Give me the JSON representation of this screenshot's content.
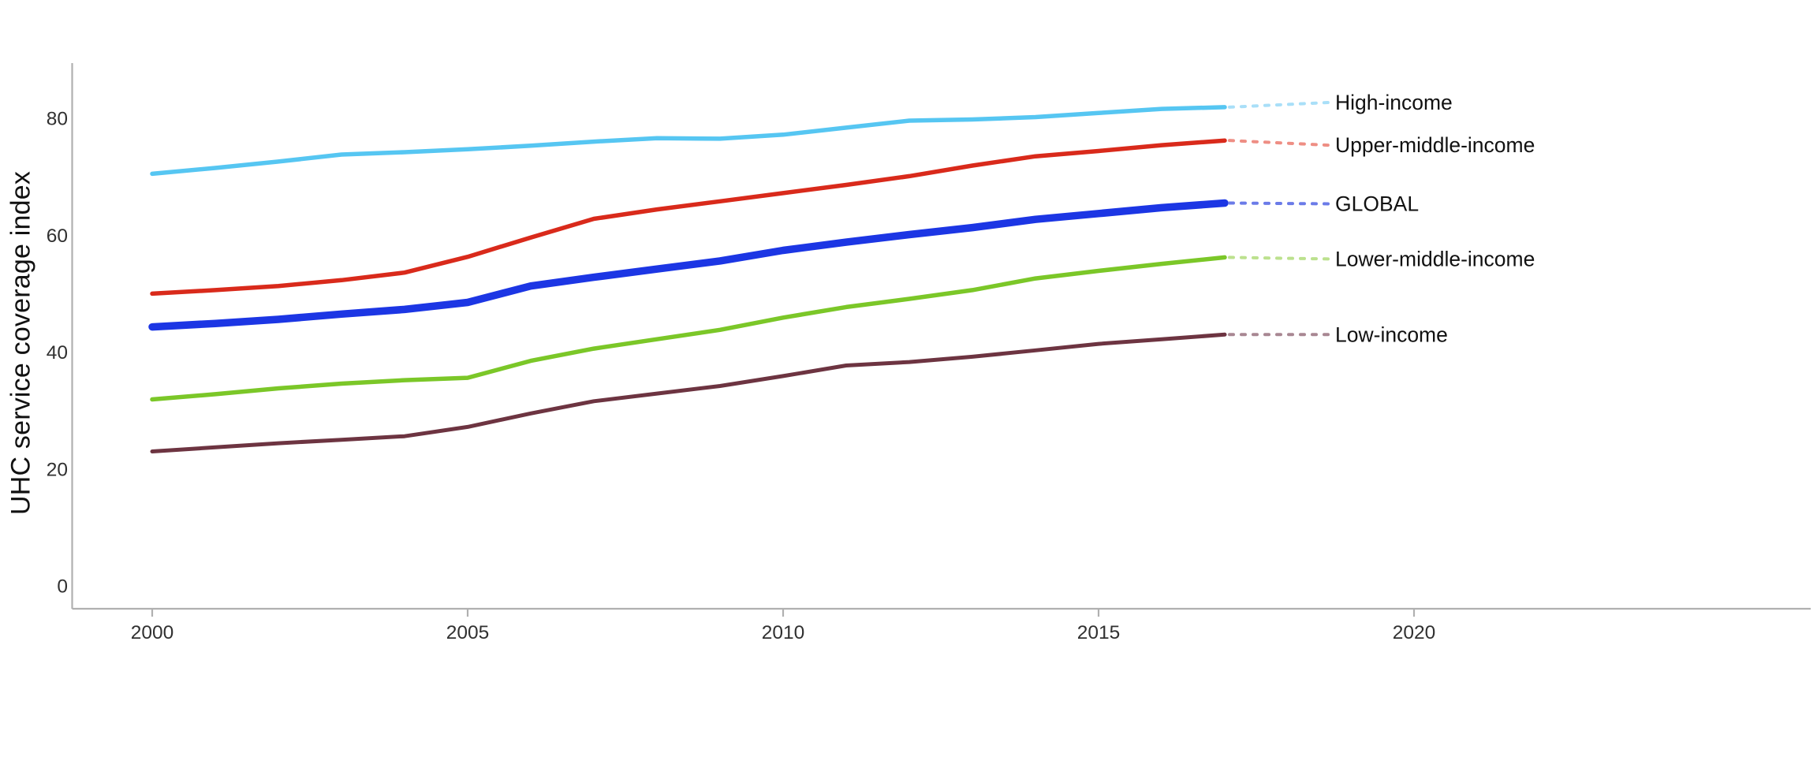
{
  "chart_data": {
    "type": "line",
    "title": "",
    "xlabel": "",
    "ylabel": "UHC service coverage index",
    "x": [
      2000,
      2001,
      2002,
      2003,
      2004,
      2005,
      2006,
      2007,
      2008,
      2009,
      2010,
      2011,
      2012,
      2013,
      2014,
      2015,
      2016,
      2017
    ],
    "x_ticks": [
      "2000",
      "2005",
      "2010",
      "2015",
      "2020"
    ],
    "x_tick_values": [
      2000,
      2005,
      2010,
      2015,
      2020
    ],
    "y_ticks": [
      "0",
      "20",
      "40",
      "60",
      "80"
    ],
    "y_tick_values": [
      0,
      20,
      40,
      60,
      80
    ],
    "ylim": [
      0,
      89
    ],
    "xlim": [
      1998.7,
      2026.3
    ],
    "grid": "off",
    "legend_position": "direct-labels-right",
    "series": [
      {
        "id": "high-income",
        "label": "High-income",
        "color": "#56C6F2",
        "leader_color": "#A9DFF8",
        "line_width": 5.5,
        "values": [
          70.5,
          71.5,
          72.6,
          73.8,
          74.2,
          74.7,
          75.3,
          76.0,
          76.6,
          76.5,
          77.2,
          78.4,
          79.6,
          79.8,
          80.2,
          80.9,
          81.6,
          81.9
        ]
      },
      {
        "id": "upper-middle-income",
        "label": "Upper-middle-income",
        "color": "#D92A1B",
        "leader_color": "#EE8E84",
        "line_width": 5.5,
        "values": [
          50.0,
          50.6,
          51.3,
          52.3,
          53.6,
          56.3,
          59.6,
          62.8,
          64.4,
          65.8,
          67.2,
          68.6,
          70.1,
          71.9,
          73.5,
          74.4,
          75.4,
          76.2
        ]
      },
      {
        "id": "global",
        "label": "GLOBAL",
        "color": "#1C36E4",
        "leader_color": "#6B7BE8",
        "line_width": 9.5,
        "values": [
          44.3,
          44.9,
          45.6,
          46.5,
          47.3,
          48.5,
          51.3,
          52.8,
          54.2,
          55.6,
          57.4,
          58.8,
          60.1,
          61.3,
          62.7,
          63.7,
          64.7,
          65.5
        ]
      },
      {
        "id": "lower-middle-income",
        "label": "Lower-middle-income",
        "color": "#7BC728",
        "leader_color": "#BCE18E",
        "line_width": 5.5,
        "values": [
          31.9,
          32.8,
          33.8,
          34.6,
          35.2,
          35.6,
          38.5,
          40.6,
          42.2,
          43.8,
          45.9,
          47.7,
          49.1,
          50.6,
          52.6,
          53.9,
          55.1,
          56.2
        ]
      },
      {
        "id": "low-income",
        "label": "Low-income",
        "color": "#6D3441",
        "leader_color": "#A88792",
        "line_width": 5,
        "values": [
          23.0,
          23.7,
          24.4,
          25.0,
          25.6,
          27.2,
          29.5,
          31.6,
          32.9,
          34.2,
          35.9,
          37.7,
          38.3,
          39.2,
          40.3,
          41.4,
          42.2,
          43.0
        ]
      }
    ],
    "colors": {
      "axis": "#B0B0B0",
      "tick_label": "#303030",
      "direct_label": "#111111",
      "background": "#FFFFFF"
    }
  }
}
